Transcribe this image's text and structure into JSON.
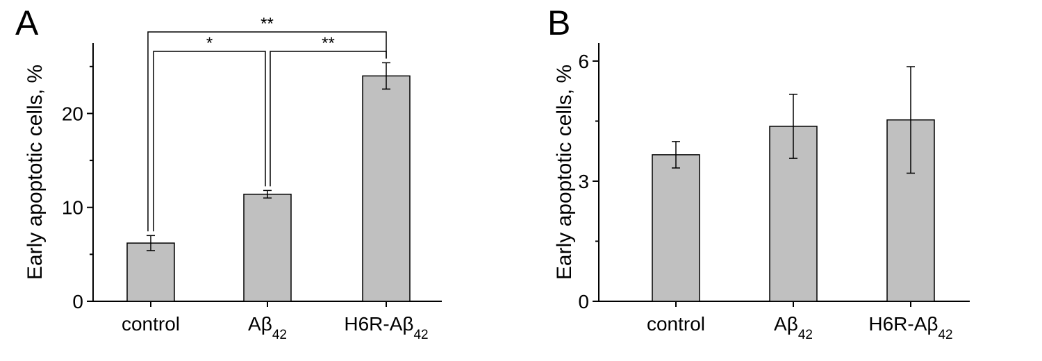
{
  "chart_data": [
    {
      "type": "bar",
      "panel": "A",
      "ylabel": "Early apoptotic cells, %",
      "ylim": [
        0,
        27.5
      ],
      "yticks": [
        0,
        10,
        20
      ],
      "categories": [
        {
          "base": "control",
          "sub": ""
        },
        {
          "base": "Aβ",
          "sub": "42"
        },
        {
          "base": "H6R-Aβ",
          "sub": "42"
        }
      ],
      "values": [
        6.2,
        11.4,
        24.0
      ],
      "errors": [
        0.8,
        0.4,
        1.4
      ],
      "bar_color": "#c0c0c0",
      "significance": [
        {
          "from": 0,
          "to": 2,
          "label": "**"
        },
        {
          "from": 0,
          "to": 1,
          "label": "*"
        },
        {
          "from": 1,
          "to": 2,
          "label": "**"
        }
      ]
    },
    {
      "type": "bar",
      "panel": "B",
      "ylabel": "Early apoptotic cells, %",
      "ylim": [
        0,
        6.45
      ],
      "yticks": [
        0,
        3,
        6
      ],
      "categories": [
        {
          "base": "control",
          "sub": ""
        },
        {
          "base": "Aβ",
          "sub": "42"
        },
        {
          "base": "H6R-Aβ",
          "sub": "42"
        }
      ],
      "values": [
        3.66,
        4.37,
        4.53
      ],
      "errors": [
        0.33,
        0.8,
        1.33
      ],
      "bar_color": "#c0c0c0",
      "significance": []
    }
  ]
}
